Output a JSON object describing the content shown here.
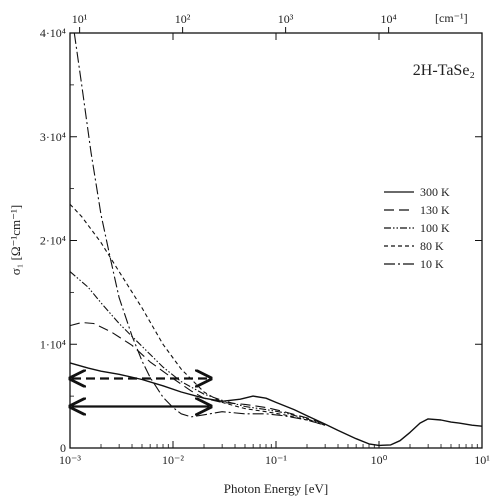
{
  "chart_data": {
    "type": "line",
    "title": "",
    "annotation": "2H-TaSe₂",
    "xlabel": "Photon Energy [eV]",
    "ylabel": "σ₁ [Ω⁻¹cm⁻¹]",
    "top_axis_unit": "[cm⁻¹]",
    "xscale": "log",
    "xlim": [
      0.001,
      10
    ],
    "ylim": [
      0,
      40000
    ],
    "x_ticks": [
      "10⁻³",
      "10⁻²",
      "10⁻¹",
      "10⁰",
      "10¹"
    ],
    "y_ticks": [
      "0",
      "1·10⁴",
      "2·10⁴",
      "3·10⁴",
      "4·10⁴"
    ],
    "top_ticks": [
      "10¹",
      "10²",
      "10³",
      "10⁴"
    ],
    "legend_position": "right",
    "series": [
      {
        "name": "300 K",
        "dash": "solid",
        "points": [
          [
            0.001,
            8200
          ],
          [
            0.0015,
            7700
          ],
          [
            0.002,
            7400
          ],
          [
            0.003,
            7100
          ],
          [
            0.005,
            6600
          ],
          [
            0.008,
            6000
          ],
          [
            0.012,
            5400
          ],
          [
            0.02,
            4800
          ],
          [
            0.03,
            4500
          ],
          [
            0.045,
            4700
          ],
          [
            0.06,
            5000
          ],
          [
            0.08,
            4800
          ],
          [
            0.1,
            4400
          ],
          [
            0.15,
            3700
          ],
          [
            0.2,
            3100
          ],
          [
            0.3,
            2300
          ],
          [
            0.4,
            1700
          ],
          [
            0.6,
            900
          ],
          [
            0.8,
            400
          ],
          [
            1.0,
            250
          ],
          [
            1.3,
            300
          ],
          [
            1.6,
            700
          ],
          [
            2.0,
            1500
          ],
          [
            2.5,
            2400
          ],
          [
            3.0,
            2800
          ],
          [
            4.0,
            2700
          ],
          [
            5.0,
            2500
          ],
          [
            6.0,
            2400
          ],
          [
            8.0,
            2200
          ],
          [
            10.0,
            2100
          ]
        ]
      },
      {
        "name": "130 K",
        "dash": "long-dash",
        "points": [
          [
            0.001,
            11800
          ],
          [
            0.0013,
            12100
          ],
          [
            0.0017,
            12000
          ],
          [
            0.0025,
            11200
          ],
          [
            0.004,
            9900
          ],
          [
            0.006,
            8300
          ],
          [
            0.01,
            6700
          ],
          [
            0.015,
            5500
          ],
          [
            0.02,
            4800
          ],
          [
            0.03,
            4400
          ],
          [
            0.05,
            4200
          ],
          [
            0.08,
            3900
          ],
          [
            0.12,
            3500
          ],
          [
            0.2,
            2900
          ],
          [
            0.3,
            2300
          ]
        ]
      },
      {
        "name": "100 K",
        "dash": "dot-dot-dash",
        "points": [
          [
            0.001,
            17000
          ],
          [
            0.0015,
            15500
          ],
          [
            0.002,
            14000
          ],
          [
            0.003,
            12000
          ],
          [
            0.005,
            9800
          ],
          [
            0.008,
            7800
          ],
          [
            0.012,
            6400
          ],
          [
            0.02,
            5200
          ],
          [
            0.03,
            4600
          ],
          [
            0.05,
            4000
          ],
          [
            0.08,
            3700
          ],
          [
            0.12,
            3400
          ],
          [
            0.2,
            2800
          ],
          [
            0.3,
            2200
          ]
        ]
      },
      {
        "name": "80 K",
        "dash": "short-dash",
        "points": [
          [
            0.001,
            23500
          ],
          [
            0.0013,
            22300
          ],
          [
            0.002,
            19800
          ],
          [
            0.003,
            17000
          ],
          [
            0.005,
            13500
          ],
          [
            0.008,
            10000
          ],
          [
            0.012,
            7600
          ],
          [
            0.02,
            5400
          ],
          [
            0.03,
            4400
          ],
          [
            0.05,
            3800
          ],
          [
            0.08,
            3500
          ],
          [
            0.12,
            3200
          ],
          [
            0.2,
            2700
          ],
          [
            0.3,
            2200
          ]
        ]
      },
      {
        "name": "10 K",
        "dash": "dash-dot",
        "points": [
          [
            0.0011,
            40000
          ],
          [
            0.0013,
            35000
          ],
          [
            0.0016,
            28500
          ],
          [
            0.002,
            22500
          ],
          [
            0.0025,
            18000
          ],
          [
            0.003,
            14500
          ],
          [
            0.004,
            10800
          ],
          [
            0.005,
            8400
          ],
          [
            0.006,
            6800
          ],
          [
            0.008,
            4900
          ],
          [
            0.01,
            3900
          ],
          [
            0.012,
            3300
          ],
          [
            0.015,
            3000
          ],
          [
            0.02,
            3200
          ],
          [
            0.03,
            3500
          ],
          [
            0.05,
            3300
          ],
          [
            0.08,
            3300
          ],
          [
            0.12,
            3100
          ],
          [
            0.2,
            2700
          ],
          [
            0.3,
            2200
          ]
        ]
      }
    ],
    "arrows": [
      {
        "style": "dashed",
        "x_from": 0.001,
        "x_to": 0.02,
        "y": 6700
      },
      {
        "style": "solid",
        "x_from": 0.001,
        "x_to": 0.02,
        "y": 4000
      }
    ]
  }
}
